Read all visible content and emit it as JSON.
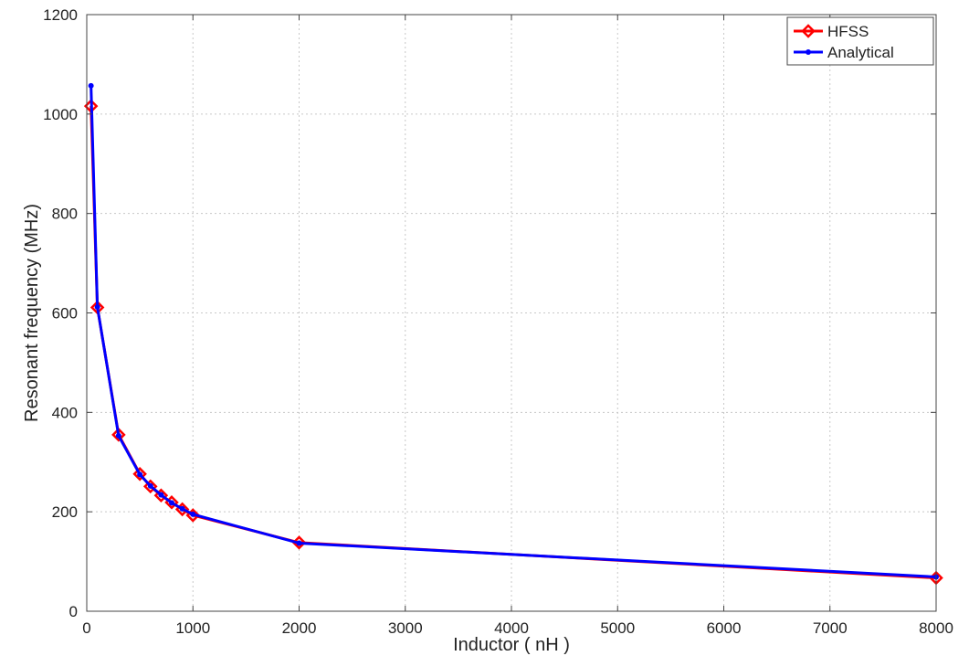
{
  "chart_data": {
    "type": "line",
    "xlabel": "Inductor ( nH )",
    "ylabel": "Resonant frequency (MHz)",
    "xlim": [
      0,
      8000
    ],
    "ylim": [
      0,
      1200
    ],
    "xticks": [
      0,
      1000,
      2000,
      3000,
      4000,
      5000,
      6000,
      7000,
      8000
    ],
    "yticks": [
      0,
      200,
      400,
      600,
      800,
      1000,
      1200
    ],
    "grid": true,
    "legend_position": "top-right",
    "series": [
      {
        "name": "HFSS",
        "color": "#ff0000",
        "marker": "diamond",
        "x": [
          40,
          100,
          300,
          500,
          600,
          700,
          800,
          900,
          1000,
          2000,
          8000
        ],
        "y": [
          1016,
          611,
          355,
          276,
          251,
          233,
          219,
          205,
          193,
          138,
          67
        ]
      },
      {
        "name": "Analytical",
        "color": "#0000ff",
        "marker": "dot",
        "x": [
          40,
          100,
          300,
          500,
          600,
          700,
          800,
          900,
          1000,
          2000,
          8000
        ],
        "y": [
          1057,
          612,
          353,
          275,
          252,
          234,
          218,
          206,
          195,
          137,
          69
        ]
      }
    ]
  }
}
